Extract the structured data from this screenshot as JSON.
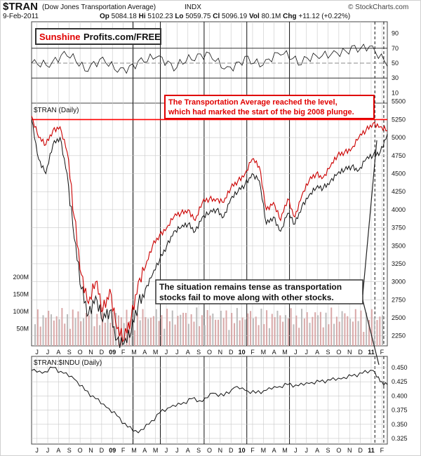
{
  "header": {
    "ticker": "$TRAN",
    "name": "(Dow Jones Transportation Average)",
    "exchange": "INDX",
    "date": "9-Feb-2011",
    "op_label": "Op",
    "op": "5084.18",
    "hi_label": "Hi",
    "hi": "5102.23",
    "lo_label": "Lo",
    "lo": "5059.75",
    "cl_label": "Cl",
    "cl": "5096.19",
    "vol_label": "Vol",
    "vol": "80.1M",
    "chg_label": "Chg",
    "chg": "+11.12 (+0.22%)",
    "source": "© StockCharts.com"
  },
  "logo": {
    "part1": "Sunshine",
    "part2": "Profits.com/FREE"
  },
  "annotations": {
    "red_box_line1": "The Transportation Average reached the level,",
    "red_box_line2": "which had marked the start of the big 2008 plunge.",
    "black_box_line1": "The situation remains tense as transportation",
    "black_box_line2": "stocks fail to move along with other stocks."
  },
  "colors": {
    "red": "#ff0000",
    "price_red": "#cc0000",
    "volume_bar": "#d9a8a8",
    "grid": "#c8c8c8"
  },
  "chart_data": [
    {
      "type": "line",
      "panel": "indicator",
      "ylim": [
        0,
        100
      ],
      "y_ticks": [
        "90",
        "70",
        "50",
        "30",
        "10"
      ],
      "reference_levels": [
        70,
        50,
        30
      ],
      "x": [
        0,
        5,
        10,
        15,
        20,
        25,
        30,
        35,
        40,
        45,
        50,
        55,
        60,
        65,
        70,
        75,
        80,
        85,
        90,
        95,
        100
      ],
      "values": [
        50,
        48,
        65,
        42,
        55,
        38,
        50,
        60,
        45,
        58,
        62,
        40,
        55,
        48,
        66,
        52,
        60,
        62,
        68,
        72,
        50
      ]
    },
    {
      "type": "line",
      "panel": "price",
      "title": "$TRAN (Daily)",
      "ylim": [
        2150,
        5400
      ],
      "y_ticks": [
        "5500",
        "5250",
        "5000",
        "4750",
        "4500",
        "4250",
        "4000",
        "3750",
        "3500",
        "3250",
        "3000",
        "2750",
        "2500",
        "2250"
      ],
      "x_ticks": [
        "J",
        "J",
        "A",
        "S",
        "O",
        "N",
        "D",
        "09",
        "F",
        "M",
        "A",
        "M",
        "J",
        "J",
        "A",
        "S",
        "O",
        "N",
        "D",
        "10",
        "F",
        "M",
        "A",
        "M",
        "J",
        "J",
        "A",
        "S",
        "O",
        "N",
        "D",
        "11",
        "F"
      ],
      "horizontal_level": 5250,
      "x": [
        0,
        2,
        4,
        6,
        8,
        10,
        12,
        14,
        16,
        18,
        20,
        22,
        24,
        26,
        28,
        30,
        32,
        34,
        36,
        38,
        40,
        42,
        44,
        46,
        48,
        50,
        52,
        54,
        56,
        58,
        60,
        62,
        64,
        66,
        68,
        70,
        72,
        74,
        76,
        78,
        80,
        82,
        84,
        86,
        88,
        90,
        92,
        94,
        96,
        98,
        100
      ],
      "series": [
        {
          "values": [
            5300,
            5000,
            4900,
            5100,
            5150,
            4800,
            3900,
            3100,
            2700,
            3000,
            2600,
            2900,
            2350,
            2200,
            2500,
            3000,
            3200,
            3500,
            3650,
            3750,
            3900,
            3950,
            4000,
            3850,
            4100,
            4150,
            4150,
            4100,
            4300,
            4400,
            4500,
            4700,
            4600,
            4000,
            4100,
            3850,
            4150,
            3900,
            4200,
            4400,
            4500,
            4450,
            4600,
            4750,
            4800,
            4850,
            5000,
            5100,
            5200,
            5150,
            5096
          ]
        },
        {
          "values": [
            5250,
            4700,
            4500,
            4900,
            5000,
            4500,
            3600,
            2900,
            2550,
            2800,
            2450,
            2600,
            2200,
            2150,
            2300,
            2700,
            2900,
            3100,
            3300,
            3500,
            3700,
            3750,
            3800,
            3700,
            3900,
            3950,
            4000,
            3900,
            4150,
            4250,
            4350,
            4500,
            4400,
            3800,
            3900,
            3700,
            3950,
            3800,
            4050,
            4200,
            4300,
            4300,
            4400,
            4500,
            4550,
            4600,
            4550,
            4700,
            4750,
            4800,
            5050
          ]
        }
      ]
    },
    {
      "type": "bar",
      "panel": "volume",
      "y_ticks": [
        "200M",
        "150M",
        "100M",
        "50M"
      ],
      "ylim": [
        0,
        200
      ]
    },
    {
      "type": "line",
      "panel": "ratio",
      "title": "$TRAN:$INDU (Daily)",
      "ylim": [
        0.32,
        0.455
      ],
      "y_ticks": [
        "0.450",
        "0.425",
        "0.400",
        "0.375",
        "0.350",
        "0.325"
      ],
      "x_ticks": [
        "J",
        "J",
        "A",
        "S",
        "O",
        "N",
        "D",
        "09",
        "F",
        "M",
        "A",
        "M",
        "J",
        "J",
        "A",
        "S",
        "O",
        "N",
        "D",
        "10",
        "F",
        "M",
        "A",
        "M",
        "J",
        "J",
        "A",
        "S",
        "O",
        "N",
        "D",
        "11",
        "F"
      ],
      "x": [
        0,
        3,
        6,
        9,
        12,
        15,
        18,
        21,
        24,
        27,
        30,
        33,
        36,
        39,
        42,
        45,
        48,
        51,
        54,
        57,
        60,
        63,
        66,
        69,
        72,
        75,
        78,
        81,
        84,
        87,
        90,
        93,
        96,
        98,
        100
      ],
      "values": [
        0.445,
        0.44,
        0.45,
        0.44,
        0.43,
        0.41,
        0.395,
        0.38,
        0.365,
        0.345,
        0.335,
        0.35,
        0.37,
        0.38,
        0.385,
        0.395,
        0.39,
        0.405,
        0.4,
        0.415,
        0.41,
        0.405,
        0.41,
        0.415,
        0.42,
        0.418,
        0.422,
        0.425,
        0.428,
        0.43,
        0.435,
        0.44,
        0.445,
        0.425,
        0.42
      ]
    }
  ]
}
